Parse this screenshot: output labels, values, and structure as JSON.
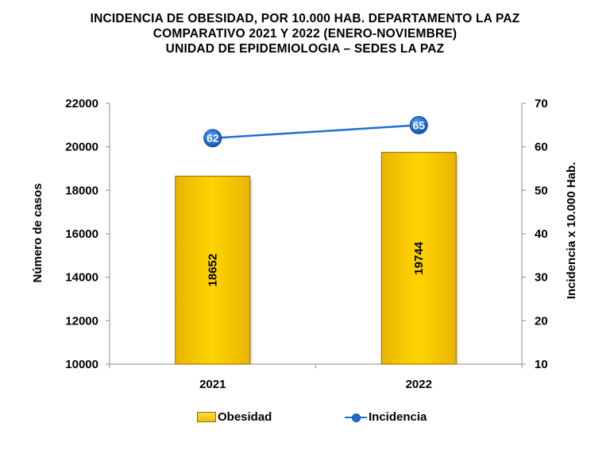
{
  "title": {
    "line1": "INCIDENCIA  DE OBESIDAD,  POR 10.000 HAB. DEPARTAMENTO  LA PAZ",
    "line2": "COMPARATIVO  2021 Y 2022 (ENERO-NOVIEMBRE)",
    "line3": "UNIDAD DE EPIDEMIOLOGIA – SEDES LA PAZ"
  },
  "chart_data": {
    "type": "bar",
    "categories": [
      "2021",
      "2022"
    ],
    "series": [
      {
        "name": "Obesidad",
        "type": "bar",
        "axis": "left",
        "values": [
          18652,
          19744
        ],
        "color": "#f7c600"
      },
      {
        "name": "Incidencia",
        "type": "line",
        "axis": "right",
        "values": [
          62,
          65
        ],
        "color": "#1f6fd1"
      }
    ],
    "ylabel": "Número de casos",
    "ylabel_right": "Incidencia x 10.000 Hab.",
    "ylim": [
      10000,
      22000
    ],
    "yticks": [
      10000,
      12000,
      14000,
      16000,
      18000,
      20000,
      22000
    ],
    "ylim_right": [
      10,
      70
    ],
    "yticks_right": [
      10,
      20,
      30,
      40,
      50,
      60,
      70
    ],
    "grid": false,
    "legend_position": "bottom"
  },
  "legend": {
    "bar_label": "Obesidad",
    "line_label": "Incidencia"
  }
}
